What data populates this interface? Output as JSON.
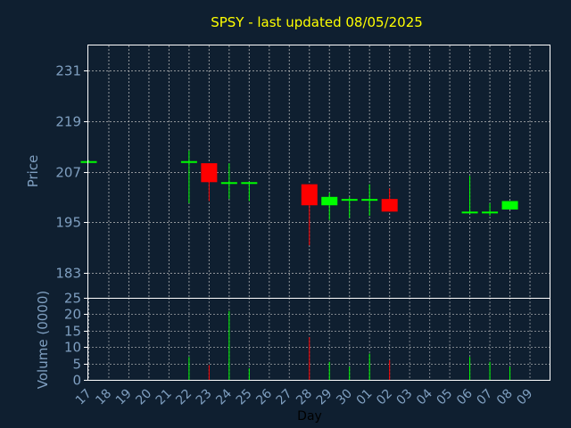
{
  "chart_data": {
    "type": "candlestick",
    "title": "SPSY - last updated 08/05/2025",
    "xlabel": "Day",
    "ylabel": "Price",
    "volume_label": "Volume (0000)",
    "grid": true,
    "legend": "none",
    "price_ylim": [
      177,
      237
    ],
    "price_ticks": [
      231,
      219,
      207,
      195,
      183
    ],
    "volume_ylim": [
      0,
      25
    ],
    "volume_ticks": [
      25,
      20,
      15,
      10,
      5,
      0
    ],
    "colors": {
      "background": "#0f1f30",
      "axis": "#ffffff",
      "grid": "#c8c8c8",
      "title": "#ffff00",
      "label": "#7f9fc0",
      "up": "#00ff00",
      "down": "#ff0000"
    },
    "x_labels": [
      "17",
      "18",
      "19",
      "20",
      "21",
      "22",
      "23",
      "24",
      "25",
      "26",
      "27",
      "28",
      "29",
      "30",
      "01",
      "02",
      "03",
      "04",
      "05",
      "06",
      "07",
      "08",
      "09"
    ],
    "candles": [
      {
        "day": "17",
        "open": 209.5,
        "close": 209.5,
        "high": 209.7,
        "low": 209.3,
        "volume": 0
      },
      {
        "day": "22",
        "open": 209.5,
        "close": 209.5,
        "high": 212.0,
        "low": 199.5,
        "volume": 7
      },
      {
        "day": "23",
        "open": 209.0,
        "close": 204.5,
        "high": 209.0,
        "low": 200.0,
        "volume": 4.5
      },
      {
        "day": "24",
        "open": 204.5,
        "close": 204.5,
        "high": 209.0,
        "low": 200.5,
        "volume": 21
      },
      {
        "day": "25",
        "open": 204.5,
        "close": 204.5,
        "high": 204.5,
        "low": 200.0,
        "volume": 3.5
      },
      {
        "day": "28",
        "open": 204.0,
        "close": 199.0,
        "high": 204.0,
        "low": 189.5,
        "volume": 13
      },
      {
        "day": "29",
        "open": 199.0,
        "close": 201.0,
        "high": 202.0,
        "low": 195.5,
        "volume": 5.5
      },
      {
        "day": "30",
        "open": 200.5,
        "close": 200.5,
        "high": 201.0,
        "low": 196.0,
        "volume": 4
      },
      {
        "day": "01",
        "open": 200.5,
        "close": 200.5,
        "high": 204.0,
        "low": 196.5,
        "volume": 8
      },
      {
        "day": "02",
        "open": 200.5,
        "close": 197.5,
        "high": 203.0,
        "low": 197.5,
        "volume": 6
      },
      {
        "day": "06",
        "open": 197.5,
        "close": 197.5,
        "high": 206.0,
        "low": 197.0,
        "volume": 7
      },
      {
        "day": "07",
        "open": 197.5,
        "close": 197.5,
        "high": 199.5,
        "low": 196.5,
        "volume": 5.5
      },
      {
        "day": "08",
        "open": 198.0,
        "close": 200.0,
        "high": 200.0,
        "low": 198.0,
        "volume": 4
      }
    ]
  }
}
